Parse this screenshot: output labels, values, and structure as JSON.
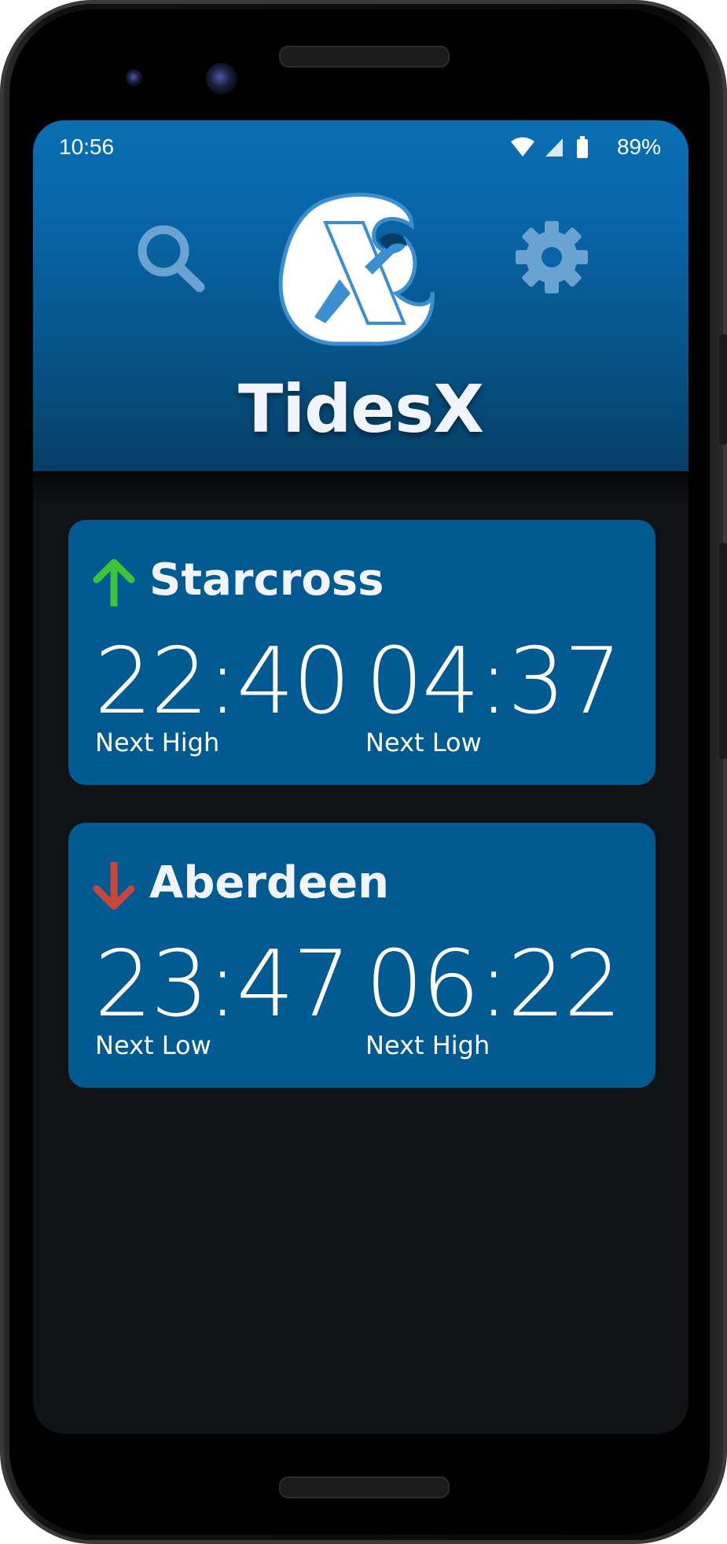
{
  "status_bar": {
    "time": "10:56",
    "battery_pct": "89%",
    "icons": [
      "wifi-icon",
      "cell-signal-icon",
      "battery-icon"
    ]
  },
  "header": {
    "app_title": "TidesX",
    "search_icon": "search-icon",
    "settings_icon": "gear-icon",
    "logo": "tidesx-logo"
  },
  "colors": {
    "header_top": "#0a6fb4",
    "card_bg": "#015a92",
    "rising": "#3ec43a",
    "falling": "#c9463a",
    "background": "#111214"
  },
  "stations": [
    {
      "name": "Starcross",
      "trend": "rising",
      "trend_icon": "arrow-up-icon",
      "time1": "22:40",
      "label1": "Next High",
      "time2": "04:37",
      "label2": "Next Low"
    },
    {
      "name": "Aberdeen",
      "trend": "falling",
      "trend_icon": "arrow-down-icon",
      "time1": "23:47",
      "label1": "Next Low",
      "time2": "06:22",
      "label2": "Next High"
    }
  ]
}
